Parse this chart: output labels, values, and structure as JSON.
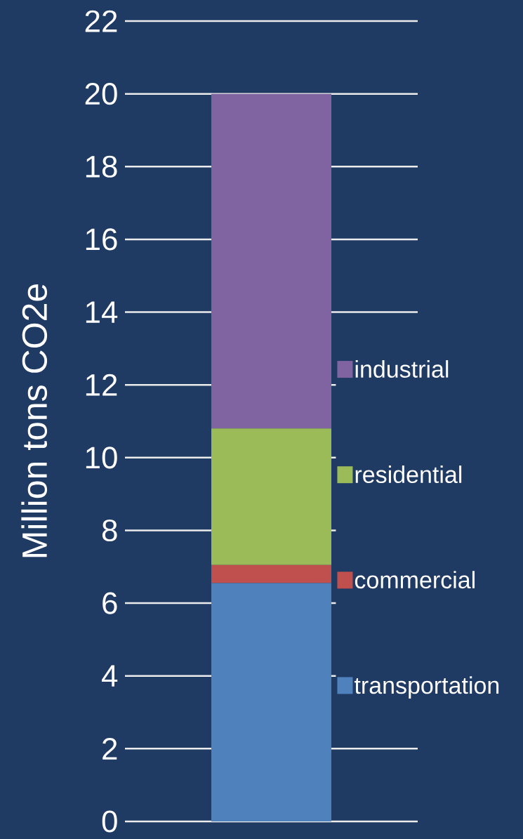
{
  "chart_data": {
    "type": "bar",
    "stacked": true,
    "ylabel": "Million tons CO2e",
    "categories": [
      null
    ],
    "series": [
      {
        "name": "transportation",
        "color": "#4f81bd",
        "values": [
          6.55
        ]
      },
      {
        "name": "commercial",
        "color": "#c0504d",
        "values": [
          0.5
        ]
      },
      {
        "name": "residential",
        "color": "#9bbb59",
        "values": [
          3.75
        ]
      },
      {
        "name": "industrial",
        "color": "#8064a2",
        "values": [
          9.2
        ]
      }
    ],
    "ylim": [
      0,
      22
    ],
    "yticks": [
      0,
      2,
      4,
      6,
      8,
      10,
      12,
      14,
      16,
      18,
      20,
      22
    ],
    "grid": "y",
    "legend": "right",
    "tick_labels": "y"
  }
}
